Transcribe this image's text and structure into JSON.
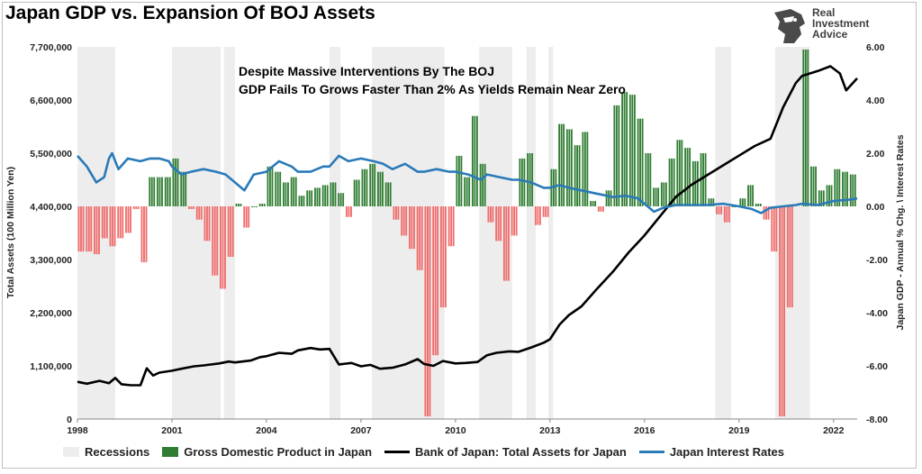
{
  "title": "Japan GDP vs. Expansion Of BOJ Assets",
  "logo": {
    "icon": "eagle-head-icon",
    "line1": "Real",
    "line2": "Investment",
    "line3": "Advice"
  },
  "annotation": [
    "Despite Massive Interventions By The BOJ",
    "GDP Fails To Grows Faster Than 2% As Yields Remain Near Zero"
  ],
  "colors": {
    "recession": "#ededed",
    "gdp_pos": "#2f7d32",
    "gdp_neg": "#ef6a6a",
    "assets": "#000000",
    "rates": "#2a7ab8"
  },
  "legend": [
    {
      "label": "Recessions",
      "type": "box",
      "color": "#ededed"
    },
    {
      "label": "Gross Domestic Product in Japan",
      "type": "box",
      "color": "#2f7d32"
    },
    {
      "label": "Bank of Japan: Total Assets for Japan",
      "type": "line",
      "color": "#000000"
    },
    {
      "label": "Japan Interest Rates",
      "type": "line",
      "color": "#2a7ab8"
    }
  ],
  "chart_data": {
    "type": "line",
    "title": "Japan GDP vs. Expansion Of BOJ Assets",
    "xlim": [
      1998,
      2022.75
    ],
    "x_ticks": [
      "1998",
      "2001",
      "2004",
      "2007",
      "2010",
      "2013",
      "2016",
      "2019",
      "2022"
    ],
    "left_axis": {
      "label": "Total Assets (100 Million Yen)",
      "ylim": [
        0,
        7700000
      ],
      "ticks": [
        "0",
        "1,100,000",
        "2,200,000",
        "3,300,000",
        "4,400,000",
        "5,500,000",
        "6,600,000",
        "7,700,000"
      ]
    },
    "right_axis": {
      "label": "Japan GDP - Annual % Chg. \\ Interest Rates",
      "ylim": [
        -8,
        6
      ],
      "ticks": [
        "-8.00",
        "-6.00",
        "-4.00",
        "-2.00",
        "0.00",
        "2.00",
        "4.00",
        "6.00"
      ]
    },
    "recessions": [
      [
        1998.0,
        1999.2
      ],
      [
        2001.0,
        2002.55
      ],
      [
        2002.65,
        2003.0
      ],
      [
        2006.0,
        2006.35
      ],
      [
        2007.35,
        2009.65
      ],
      [
        2010.75,
        2011.8
      ],
      [
        2012.25,
        2012.55
      ],
      [
        2012.95,
        2013.1
      ],
      [
        2018.25,
        2018.75
      ],
      [
        2020.15,
        2021.25
      ]
    ],
    "series": [
      {
        "name": "Gross Domestic Product in Japan",
        "kind": "bar",
        "axis": "right",
        "points": [
          [
            1998.0,
            -1.7
          ],
          [
            1998.25,
            -1.7
          ],
          [
            1998.5,
            -1.8
          ],
          [
            1998.75,
            -1.2
          ],
          [
            1999.0,
            -1.5
          ],
          [
            1999.25,
            -1.2
          ],
          [
            1999.5,
            -1.0
          ],
          [
            1999.75,
            -0.1
          ],
          [
            2000.0,
            -2.1
          ],
          [
            2000.25,
            1.1
          ],
          [
            2000.5,
            1.1
          ],
          [
            2000.75,
            1.1
          ],
          [
            2001.0,
            1.8
          ],
          [
            2001.25,
            1.3
          ],
          [
            2001.5,
            -0.1
          ],
          [
            2001.75,
            -0.5
          ],
          [
            2002.0,
            -1.3
          ],
          [
            2002.25,
            -2.6
          ],
          [
            2002.5,
            -3.1
          ],
          [
            2002.75,
            -1.9
          ],
          [
            2003.0,
            0.1
          ],
          [
            2003.25,
            -0.8
          ],
          [
            2003.5,
            0.0
          ],
          [
            2003.75,
            0.1
          ],
          [
            2004.0,
            1.5
          ],
          [
            2004.25,
            1.3
          ],
          [
            2004.5,
            0.9
          ],
          [
            2004.75,
            1.1
          ],
          [
            2005.0,
            0.4
          ],
          [
            2005.25,
            0.6
          ],
          [
            2005.5,
            0.7
          ],
          [
            2005.75,
            0.8
          ],
          [
            2006.0,
            0.9
          ],
          [
            2006.25,
            0.5
          ],
          [
            2006.5,
            -0.4
          ],
          [
            2006.75,
            1.0
          ],
          [
            2007.0,
            1.4
          ],
          [
            2007.25,
            1.6
          ],
          [
            2007.5,
            1.3
          ],
          [
            2007.75,
            0.9
          ],
          [
            2008.0,
            -0.5
          ],
          [
            2008.25,
            -1.1
          ],
          [
            2008.5,
            -1.6
          ],
          [
            2008.75,
            -2.4
          ],
          [
            2009.0,
            -7.9
          ],
          [
            2009.25,
            -5.6
          ],
          [
            2009.5,
            -3.8
          ],
          [
            2009.75,
            -1.5
          ],
          [
            2010.0,
            1.9
          ],
          [
            2010.25,
            1.1
          ],
          [
            2010.5,
            3.4
          ],
          [
            2010.75,
            1.6
          ],
          [
            2011.0,
            -0.6
          ],
          [
            2011.25,
            -1.3
          ],
          [
            2011.5,
            -2.8
          ],
          [
            2011.75,
            -1.1
          ],
          [
            2012.0,
            1.8
          ],
          [
            2012.25,
            2.0
          ],
          [
            2012.5,
            -0.7
          ],
          [
            2012.75,
            -0.4
          ],
          [
            2013.0,
            1.4
          ],
          [
            2013.25,
            3.1
          ],
          [
            2013.5,
            2.9
          ],
          [
            2013.75,
            2.3
          ],
          [
            2014.0,
            2.8
          ],
          [
            2014.25,
            0.2
          ],
          [
            2014.5,
            -0.2
          ],
          [
            2014.75,
            0.6
          ],
          [
            2015.0,
            3.8
          ],
          [
            2015.25,
            4.3
          ],
          [
            2015.5,
            4.2
          ],
          [
            2015.75,
            3.3
          ],
          [
            2016.0,
            2.0
          ],
          [
            2016.25,
            0.7
          ],
          [
            2016.5,
            0.9
          ],
          [
            2016.75,
            1.8
          ],
          [
            2017.0,
            2.5
          ],
          [
            2017.25,
            2.2
          ],
          [
            2017.5,
            1.7
          ],
          [
            2017.75,
            2.0
          ],
          [
            2018.0,
            0.3
          ],
          [
            2018.25,
            -0.3
          ],
          [
            2018.5,
            -0.6
          ],
          [
            2018.75,
            0.0
          ],
          [
            2019.0,
            0.3
          ],
          [
            2019.25,
            0.8
          ],
          [
            2019.5,
            0.1
          ],
          [
            2019.75,
            -0.5
          ],
          [
            2020.0,
            -1.7
          ],
          [
            2020.25,
            -7.9
          ],
          [
            2020.5,
            -3.8
          ],
          [
            2021.0,
            5.9
          ],
          [
            2021.25,
            1.5
          ],
          [
            2021.5,
            0.6
          ],
          [
            2021.75,
            0.8
          ],
          [
            2022.0,
            1.4
          ],
          [
            2022.25,
            1.3
          ],
          [
            2022.5,
            1.2
          ]
        ]
      },
      {
        "name": "Bank of Japan: Total Assets for Japan",
        "kind": "line",
        "axis": "left",
        "points": [
          [
            1998.0,
            770000
          ],
          [
            1998.3,
            730000
          ],
          [
            1998.7,
            790000
          ],
          [
            1999.0,
            740000
          ],
          [
            1999.2,
            850000
          ],
          [
            1999.4,
            720000
          ],
          [
            1999.7,
            700000
          ],
          [
            2000.0,
            700000
          ],
          [
            2000.2,
            1050000
          ],
          [
            2000.4,
            900000
          ],
          [
            2000.6,
            960000
          ],
          [
            2001.0,
            1000000
          ],
          [
            2001.3,
            1040000
          ],
          [
            2001.7,
            1090000
          ],
          [
            2002.0,
            1110000
          ],
          [
            2002.5,
            1150000
          ],
          [
            2002.8,
            1190000
          ],
          [
            2003.0,
            1170000
          ],
          [
            2003.5,
            1210000
          ],
          [
            2003.8,
            1280000
          ],
          [
            2004.0,
            1300000
          ],
          [
            2004.4,
            1370000
          ],
          [
            2004.8,
            1350000
          ],
          [
            2005.0,
            1420000
          ],
          [
            2005.4,
            1470000
          ],
          [
            2005.7,
            1440000
          ],
          [
            2006.0,
            1450000
          ],
          [
            2006.3,
            1130000
          ],
          [
            2006.7,
            1160000
          ],
          [
            2007.0,
            1090000
          ],
          [
            2007.3,
            1120000
          ],
          [
            2007.6,
            1040000
          ],
          [
            2008.0,
            1060000
          ],
          [
            2008.4,
            1130000
          ],
          [
            2008.8,
            1240000
          ],
          [
            2009.0,
            1140000
          ],
          [
            2009.3,
            1100000
          ],
          [
            2009.6,
            1200000
          ],
          [
            2010.0,
            1150000
          ],
          [
            2010.3,
            1160000
          ],
          [
            2010.7,
            1180000
          ],
          [
            2011.0,
            1320000
          ],
          [
            2011.3,
            1370000
          ],
          [
            2011.7,
            1400000
          ],
          [
            2012.0,
            1390000
          ],
          [
            2012.4,
            1480000
          ],
          [
            2012.8,
            1580000
          ],
          [
            2013.0,
            1650000
          ],
          [
            2013.3,
            1950000
          ],
          [
            2013.6,
            2150000
          ],
          [
            2014.0,
            2330000
          ],
          [
            2014.5,
            2700000
          ],
          [
            2015.0,
            3050000
          ],
          [
            2015.5,
            3450000
          ],
          [
            2016.0,
            3800000
          ],
          [
            2016.5,
            4200000
          ],
          [
            2017.0,
            4600000
          ],
          [
            2017.5,
            4850000
          ],
          [
            2018.0,
            5050000
          ],
          [
            2018.5,
            5250000
          ],
          [
            2019.0,
            5450000
          ],
          [
            2019.5,
            5650000
          ],
          [
            2020.0,
            5800000
          ],
          [
            2020.4,
            6450000
          ],
          [
            2020.8,
            6950000
          ],
          [
            2021.0,
            7100000
          ],
          [
            2021.5,
            7200000
          ],
          [
            2021.9,
            7300000
          ],
          [
            2022.2,
            7150000
          ],
          [
            2022.4,
            6800000
          ],
          [
            2022.75,
            7050000
          ]
        ]
      },
      {
        "name": "Japan Interest Rates",
        "kind": "line",
        "axis": "right",
        "points": [
          [
            1998.0,
            1.9
          ],
          [
            1998.3,
            1.5
          ],
          [
            1998.6,
            0.9
          ],
          [
            1998.85,
            1.1
          ],
          [
            1999.0,
            1.8
          ],
          [
            1999.1,
            2.0
          ],
          [
            1999.3,
            1.4
          ],
          [
            1999.6,
            1.8
          ],
          [
            2000.0,
            1.7
          ],
          [
            2000.3,
            1.8
          ],
          [
            2000.6,
            1.8
          ],
          [
            2000.9,
            1.7
          ],
          [
            2001.0,
            1.5
          ],
          [
            2001.3,
            1.2
          ],
          [
            2001.6,
            1.3
          ],
          [
            2002.0,
            1.4
          ],
          [
            2002.4,
            1.3
          ],
          [
            2002.7,
            1.2
          ],
          [
            2003.0,
            0.9
          ],
          [
            2003.3,
            0.6
          ],
          [
            2003.6,
            1.2
          ],
          [
            2004.0,
            1.3
          ],
          [
            2004.4,
            1.7
          ],
          [
            2004.8,
            1.5
          ],
          [
            2005.0,
            1.3
          ],
          [
            2005.4,
            1.3
          ],
          [
            2005.8,
            1.5
          ],
          [
            2006.0,
            1.5
          ],
          [
            2006.3,
            1.9
          ],
          [
            2006.6,
            1.7
          ],
          [
            2007.0,
            1.8
          ],
          [
            2007.4,
            1.7
          ],
          [
            2007.7,
            1.6
          ],
          [
            2008.0,
            1.4
          ],
          [
            2008.4,
            1.6
          ],
          [
            2008.8,
            1.3
          ],
          [
            2009.0,
            1.3
          ],
          [
            2009.4,
            1.4
          ],
          [
            2009.8,
            1.3
          ],
          [
            2010.0,
            1.3
          ],
          [
            2010.4,
            1.2
          ],
          [
            2010.8,
            1.0
          ],
          [
            2011.0,
            1.2
          ],
          [
            2011.4,
            1.1
          ],
          [
            2011.8,
            1.0
          ],
          [
            2012.0,
            1.0
          ],
          [
            2012.4,
            0.9
          ],
          [
            2012.8,
            0.7
          ],
          [
            2013.0,
            0.7
          ],
          [
            2013.3,
            0.8
          ],
          [
            2013.6,
            0.7
          ],
          [
            2014.0,
            0.6
          ],
          [
            2014.4,
            0.5
          ],
          [
            2014.8,
            0.4
          ],
          [
            2015.0,
            0.35
          ],
          [
            2015.4,
            0.4
          ],
          [
            2015.8,
            0.3
          ],
          [
            2016.0,
            0.1
          ],
          [
            2016.3,
            -0.2
          ],
          [
            2016.6,
            -0.05
          ],
          [
            2017.0,
            0.05
          ],
          [
            2017.5,
            0.05
          ],
          [
            2018.0,
            0.05
          ],
          [
            2018.5,
            0.1
          ],
          [
            2019.0,
            0.0
          ],
          [
            2019.4,
            -0.1
          ],
          [
            2019.7,
            -0.25
          ],
          [
            2020.0,
            -0.05
          ],
          [
            2020.4,
            0.0
          ],
          [
            2020.8,
            0.05
          ],
          [
            2021.0,
            0.1
          ],
          [
            2021.5,
            0.05
          ],
          [
            2022.0,
            0.2
          ],
          [
            2022.5,
            0.25
          ],
          [
            2022.75,
            0.3
          ]
        ]
      }
    ]
  }
}
